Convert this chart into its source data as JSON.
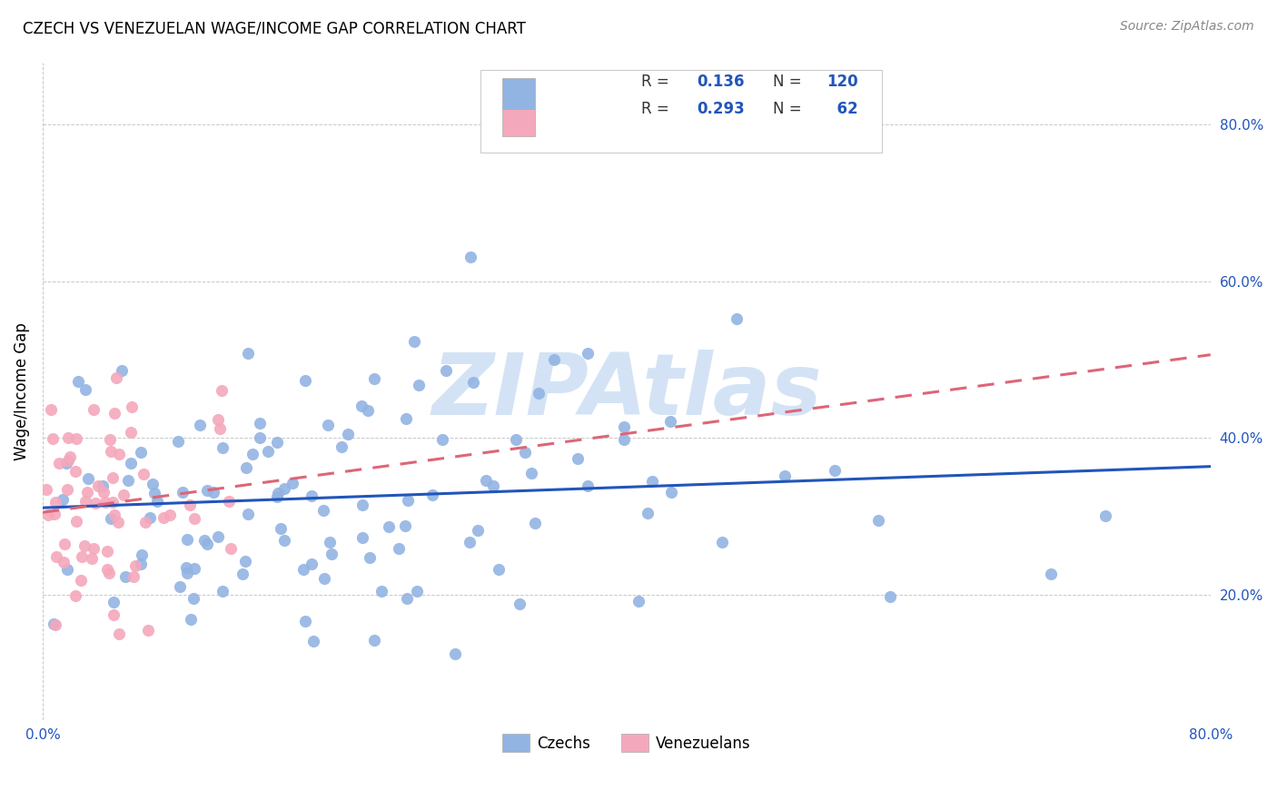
{
  "title": "CZECH VS VENEZUELAN WAGE/INCOME GAP CORRELATION CHART",
  "source": "Source: ZipAtlas.com",
  "ylabel": "Wage/Income Gap",
  "czech_color": "#92b4e3",
  "venezuelan_color": "#f4a8bc",
  "czech_line_color": "#2255bb",
  "venezuelan_line_color": "#dd6677",
  "tick_color": "#2255bb",
  "legend_R_czech": "0.136",
  "legend_N_czech": "120",
  "legend_R_venezuelan": "0.293",
  "legend_N_venezuelan": "62",
  "watermark_text": "ZIPAtlas",
  "watermark_color": "#b0ccee",
  "xlim": [
    0.0,
    0.8
  ],
  "ylim": [
    0.04,
    0.88
  ],
  "yticks": [
    0.2,
    0.4,
    0.6,
    0.8
  ],
  "n_czech": 120,
  "n_venezuelan": 62,
  "R_czech": 0.136,
  "R_venezuelan": 0.293
}
